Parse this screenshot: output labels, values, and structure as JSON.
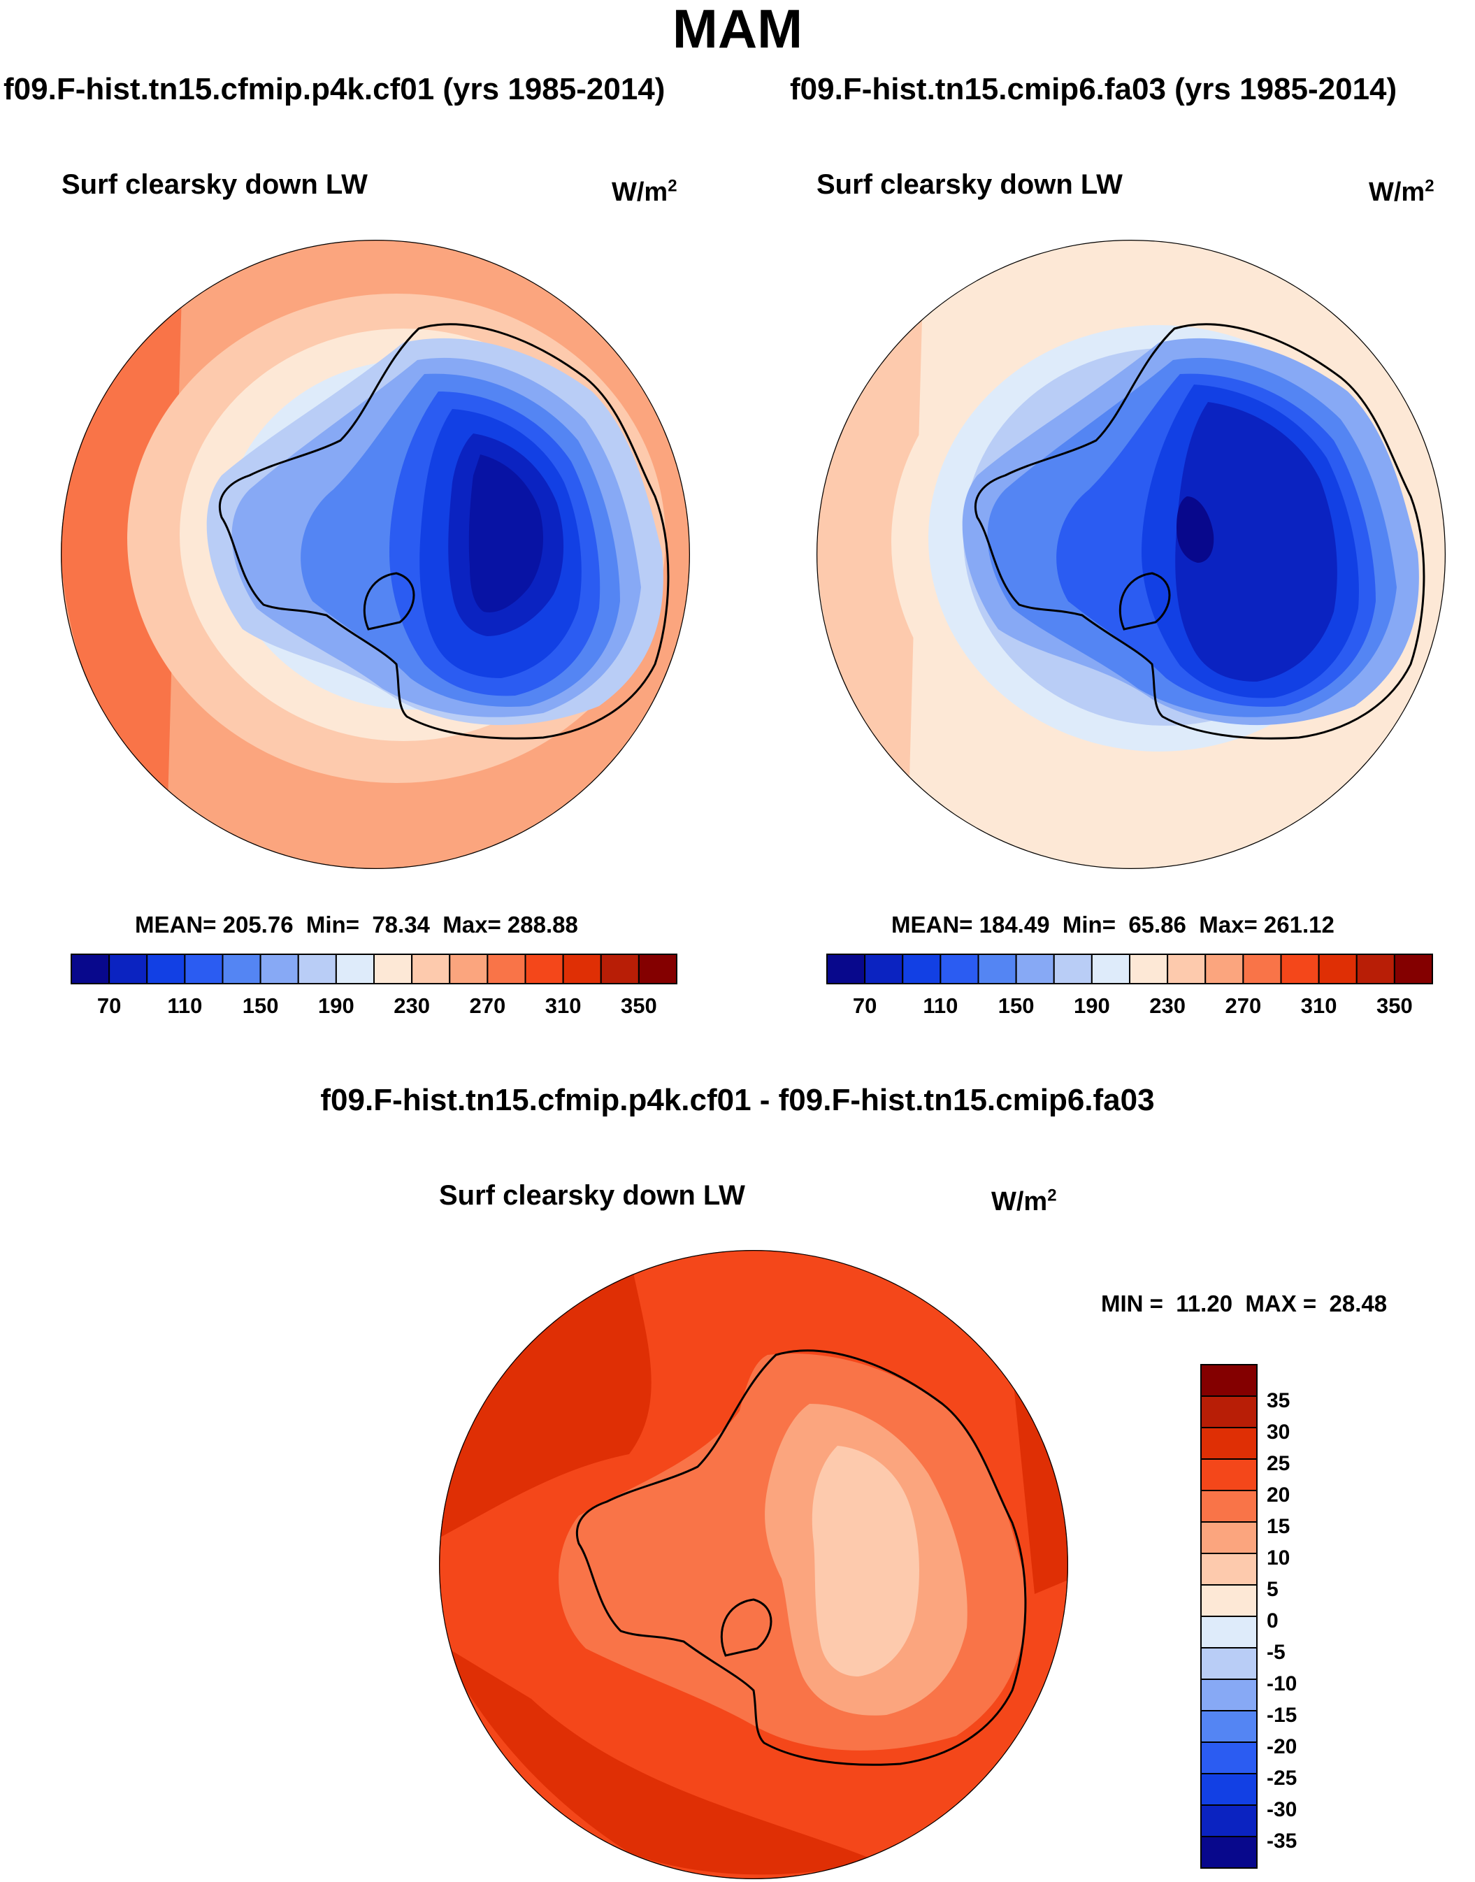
{
  "chart_data": [
    {
      "type": "heatmap",
      "title": "f09.F-hist.tn15.cfmip.p4k.cf01 (yrs 1985-2014)",
      "variable": "Surf clearsky down LW",
      "units_base": "W/m",
      "units_exp": "2",
      "stats": {
        "mean_label": "MEAN=",
        "mean": "205.76",
        "min_label": "Min=",
        "min": "78.34",
        "max_label": "Max=",
        "max": "288.88"
      },
      "colorbar_ticks": [
        "70",
        "110",
        "150",
        "190",
        "230",
        "270",
        "310",
        "350"
      ]
    },
    {
      "type": "heatmap",
      "title": "f09.F-hist.tn15.cmip6.fa03 (yrs 1985-2014)",
      "variable": "Surf clearsky down LW",
      "units_base": "W/m",
      "units_exp": "2",
      "stats": {
        "mean_label": "MEAN=",
        "mean": "184.49",
        "min_label": "Min=",
        "min": "65.86",
        "max_label": "Max=",
        "max": "261.12"
      },
      "colorbar_ticks": [
        "70",
        "110",
        "150",
        "190",
        "230",
        "270",
        "310",
        "350"
      ]
    },
    {
      "type": "heatmap",
      "title": "f09.F-hist.tn15.cfmip.p4k.cf01 - f09.F-hist.tn15.cmip6.fa03",
      "variable": "Surf clearsky down LW",
      "units_base": "W/m",
      "units_exp": "2",
      "stats": {
        "min_label": "MIN =",
        "min": "11.20",
        "max_label": "MAX =",
        "max": "28.48"
      },
      "colorbar_ticks": [
        "35",
        "30",
        "25",
        "20",
        "15",
        "10",
        "5",
        "0",
        "-5",
        "-10",
        "-15",
        "-20",
        "-25",
        "-30",
        "-35"
      ]
    }
  ],
  "page": {
    "season": "MAM"
  },
  "colors": {
    "seq": [
      "#08088c",
      "#0b23c1",
      "#1240e4",
      "#2b5cf2",
      "#5485f3",
      "#87a9f5",
      "#b9cdf6",
      "#deebfa",
      "#fde8d6",
      "#fdcaad",
      "#fba57e",
      "#f97448",
      "#f4471a",
      "#df2f05",
      "#b81e06",
      "#840000"
    ],
    "diff": [
      "#840000",
      "#b81e06",
      "#df2f05",
      "#f4471a",
      "#f97448",
      "#fba57e",
      "#fdcaad",
      "#fde8d6",
      "#deebfa",
      "#b9cdf6",
      "#87a9f5",
      "#5485f3",
      "#2b5cf2",
      "#1240e4",
      "#0b23c1",
      "#08088c"
    ]
  }
}
